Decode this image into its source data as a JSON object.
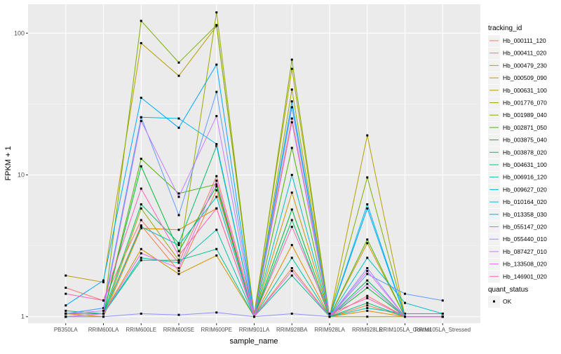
{
  "chart_data": {
    "type": "line",
    "xlabel": "sample_name",
    "ylabel": "FPKM + 1",
    "y_scale": "log10",
    "ylim": [
      0.9,
      160
    ],
    "y_ticks": [
      {
        "value": 1,
        "label": "1"
      },
      {
        "value": 10,
        "label": "10"
      },
      {
        "value": 100,
        "label": "100"
      }
    ],
    "categories": [
      "PB350LA",
      "RRIM600LA",
      "RRIM600LE",
      "RRIM600SE",
      "RRIM600PE",
      "RRIM901LA",
      "RRIM928BA",
      "RRIM928LA",
      "RRIM928LE",
      "RRIM105LA_Control",
      "RRIM105LA_Stressed"
    ],
    "grid": true,
    "legend": {
      "placement": "right",
      "title": "tracking_id",
      "shape_title": "quant_status",
      "shape_entries": [
        {
          "label": "OK",
          "marker": "square"
        }
      ]
    },
    "series": [
      {
        "name": "Hb_000111_120",
        "color": "#F8766D",
        "values": [
          1.6,
          1.3,
          4.8,
          2.4,
          9.8,
          1.05,
          25,
          1.0,
          1.4,
          1.0,
          1.0
        ]
      },
      {
        "name": "Hb_000411_020",
        "color": "#EE8044",
        "values": [
          1.05,
          1.05,
          4.4,
          2.1,
          7.8,
          1.0,
          2.2,
          1.0,
          1.2,
          1.0,
          1.0
        ]
      },
      {
        "name": "Hb_000479_230",
        "color": "#E08B00",
        "values": [
          1.05,
          1.0,
          4.2,
          4.1,
          5.8,
          1.0,
          3.2,
          1.0,
          1.1,
          1.0,
          1.0
        ]
      },
      {
        "name": "Hb_000509_090",
        "color": "#CF9400",
        "values": [
          1.05,
          1.05,
          3.0,
          2.0,
          2.7,
          1.0,
          7.5,
          1.0,
          3.3,
          1.0,
          1.0
        ]
      },
      {
        "name": "Hb_000631_100",
        "color": "#B79F00",
        "values": [
          1.95,
          1.75,
          85,
          50,
          112,
          1.05,
          56,
          1.0,
          19,
          1.0,
          1.0
        ]
      },
      {
        "name": "Hb_001776_070",
        "color": "#9CA700",
        "values": [
          1.0,
          1.0,
          5.8,
          2.5,
          140,
          1.0,
          40,
          1.0,
          1.0,
          1.0,
          1.0
        ]
      },
      {
        "name": "Hb_001989_040",
        "color": "#7CAE00",
        "values": [
          1.05,
          1.05,
          122,
          62,
          114,
          1.0,
          65,
          1.0,
          9.6,
          1.0,
          1.0
        ]
      },
      {
        "name": "Hb_002871_050",
        "color": "#4BB500",
        "values": [
          1.05,
          1.05,
          13,
          7.4,
          8.6,
          1.0,
          15.5,
          1.0,
          3.5,
          1.0,
          1.0
        ]
      },
      {
        "name": "Hb_003875_040",
        "color": "#00BA38",
        "values": [
          1.05,
          1.05,
          11.5,
          2.9,
          8.3,
          1.0,
          5.7,
          1.0,
          1.6,
          1.0,
          1.0
        ]
      },
      {
        "name": "Hb_003878_020",
        "color": "#00BE67",
        "values": [
          1.1,
          1.05,
          6.2,
          3.3,
          16,
          1.0,
          4.8,
          1.0,
          1.8,
          1.0,
          1.0
        ]
      },
      {
        "name": "Hb_004631_100",
        "color": "#00C08B",
        "values": [
          1.05,
          1.05,
          2.5,
          2.5,
          3.0,
          1.0,
          1.95,
          1.0,
          1.25,
          1.0,
          1.0
        ]
      },
      {
        "name": "Hb_006916_120",
        "color": "#00C1AA",
        "values": [
          1.0,
          1.05,
          2.6,
          2.4,
          4.1,
          1.0,
          2.6,
          1.0,
          1.15,
          1.05,
          1.05
        ]
      },
      {
        "name": "Hb_009627_020",
        "color": "#00BFC4",
        "values": [
          1.05,
          1.05,
          4.3,
          3.2,
          7.0,
          1.0,
          10,
          1.0,
          2.6,
          1.25,
          1.05
        ]
      },
      {
        "name": "Hb_010164_020",
        "color": "#00B8E7",
        "values": [
          1.05,
          1.15,
          25.5,
          25,
          16.5,
          1.0,
          30,
          1.0,
          6.2,
          1.0,
          1.0
        ]
      },
      {
        "name": "Hb_013358_030",
        "color": "#00A9FF",
        "values": [
          1.2,
          1.8,
          35,
          21.5,
          60,
          1.0,
          33,
          1.0,
          5.8,
          1.0,
          1.0
        ]
      },
      {
        "name": "Hb_055147_020",
        "color": "#619CFF",
        "values": [
          1.05,
          1.15,
          25.5,
          5.2,
          38.5,
          1.0,
          30,
          1.0,
          2.0,
          1.45,
          1.3
        ]
      },
      {
        "name": "Hb_055440_010",
        "color": "#8F91FF",
        "values": [
          1.0,
          1.0,
          1.05,
          1.03,
          1.07,
          1.0,
          1.05,
          1.0,
          2.2,
          1.0,
          1.0
        ]
      },
      {
        "name": "Hb_087427_010",
        "color": "#C77CFF",
        "values": [
          1.05,
          1.1,
          24,
          7.0,
          26,
          1.0,
          23.5,
          1.0,
          1.7,
          1.0,
          1.0
        ]
      },
      {
        "name": "Hb_133508_020",
        "color": "#E76BF3",
        "values": [
          1.0,
          1.05,
          2.8,
          2.2,
          9.1,
          1.0,
          2.1,
          1.0,
          2.1,
          1.0,
          1.0
        ]
      },
      {
        "name": "Hb_146901_020",
        "color": "#FF62BC",
        "values": [
          1.45,
          1.3,
          8.0,
          2.7,
          5.8,
          1.0,
          4.3,
          1.05,
          1.35,
          1.0,
          1.0
        ]
      }
    ]
  }
}
